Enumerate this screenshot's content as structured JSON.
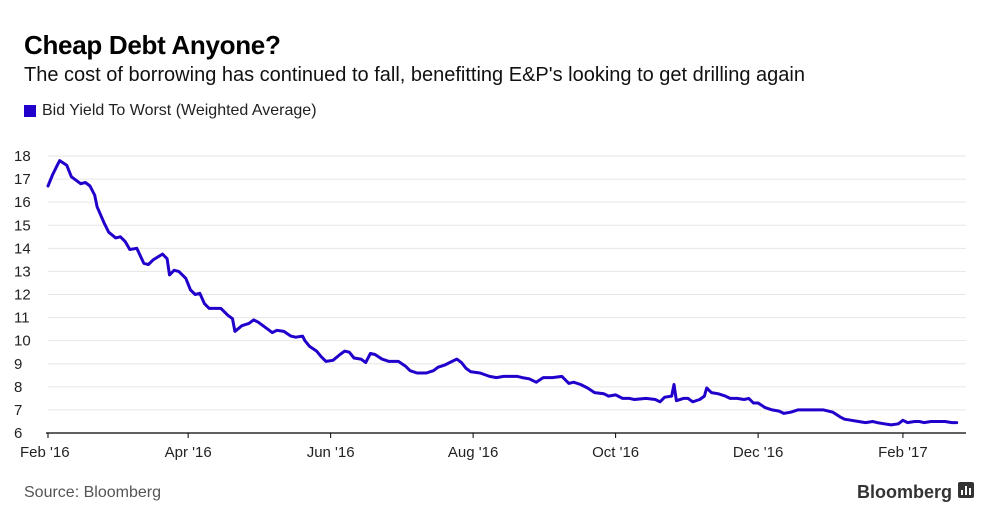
{
  "header": {
    "title": "Cheap Debt Anyone?",
    "subtitle": "The cost of borrowing has continued to fall, benefitting E&P's looking to get drilling again"
  },
  "legend": {
    "label": "Bid Yield To Worst (Weighted Average)"
  },
  "footer": {
    "source": "Source: Bloomberg",
    "brand": "Bloomberg"
  },
  "icons": {
    "brand_icon": "bar-chart-icon"
  },
  "colors": {
    "series": "#2200cc",
    "grid": "#e6e6e6",
    "axis": "#000000"
  },
  "chart_data": {
    "type": "line",
    "title": "Cheap Debt Anyone?",
    "subtitle": "The cost of borrowing has continued to fall, benefitting E&P's looking to get drilling again",
    "xlabel": "",
    "ylabel": "",
    "ylim": [
      6,
      18
    ],
    "yticks": [
      6,
      7,
      8,
      9,
      10,
      11,
      12,
      13,
      14,
      15,
      16,
      17,
      18
    ],
    "xlim": [
      "2016-02-01",
      "2017-02-28"
    ],
    "xticks": [
      {
        "date": "2016-02-01",
        "label": "Feb '16"
      },
      {
        "date": "2016-04-01",
        "label": "Apr '16"
      },
      {
        "date": "2016-06-01",
        "label": "Jun '16"
      },
      {
        "date": "2016-08-01",
        "label": "Aug '16"
      },
      {
        "date": "2016-10-01",
        "label": "Oct '16"
      },
      {
        "date": "2016-12-01",
        "label": "Dec '16"
      },
      {
        "date": "2017-02-01",
        "label": "Feb '17"
      }
    ],
    "grid": true,
    "legend_position": "top-left",
    "series": [
      {
        "name": "Bid Yield To Worst (Weighted Average)",
        "points": [
          [
            "2016-02-01",
            16.7
          ],
          [
            "2016-02-03",
            17.2
          ],
          [
            "2016-02-05",
            17.6
          ],
          [
            "2016-02-06",
            17.8
          ],
          [
            "2016-02-09",
            17.6
          ],
          [
            "2016-02-11",
            17.1
          ],
          [
            "2016-02-15",
            16.8
          ],
          [
            "2016-02-17",
            16.85
          ],
          [
            "2016-02-19",
            16.7
          ],
          [
            "2016-02-21",
            16.3
          ],
          [
            "2016-02-22",
            15.8
          ],
          [
            "2016-02-25",
            15.1
          ],
          [
            "2016-02-27",
            14.7
          ],
          [
            "2016-03-01",
            14.45
          ],
          [
            "2016-03-03",
            14.5
          ],
          [
            "2016-03-05",
            14.3
          ],
          [
            "2016-03-07",
            13.95
          ],
          [
            "2016-03-10",
            14.0
          ],
          [
            "2016-03-13",
            13.35
          ],
          [
            "2016-03-15",
            13.3
          ],
          [
            "2016-03-17",
            13.5
          ],
          [
            "2016-03-21",
            13.75
          ],
          [
            "2016-03-23",
            13.55
          ],
          [
            "2016-03-24",
            12.85
          ],
          [
            "2016-03-26",
            13.05
          ],
          [
            "2016-03-28",
            13.0
          ],
          [
            "2016-03-31",
            12.7
          ],
          [
            "2016-04-02",
            12.2
          ],
          [
            "2016-04-04",
            12.0
          ],
          [
            "2016-04-06",
            12.05
          ],
          [
            "2016-04-08",
            11.6
          ],
          [
            "2016-04-10",
            11.4
          ],
          [
            "2016-04-15",
            11.4
          ],
          [
            "2016-04-18",
            11.1
          ],
          [
            "2016-04-20",
            10.95
          ],
          [
            "2016-04-21",
            10.4
          ],
          [
            "2016-04-24",
            10.65
          ],
          [
            "2016-04-27",
            10.75
          ],
          [
            "2016-04-29",
            10.9
          ],
          [
            "2016-05-01",
            10.8
          ],
          [
            "2016-05-05",
            10.5
          ],
          [
            "2016-05-07",
            10.35
          ],
          [
            "2016-05-09",
            10.45
          ],
          [
            "2016-05-12",
            10.4
          ],
          [
            "2016-05-15",
            10.2
          ],
          [
            "2016-05-17",
            10.15
          ],
          [
            "2016-05-20",
            10.2
          ],
          [
            "2016-05-21",
            10.0
          ],
          [
            "2016-05-23",
            9.75
          ],
          [
            "2016-05-26",
            9.55
          ],
          [
            "2016-05-28",
            9.3
          ],
          [
            "2016-05-30",
            9.1
          ],
          [
            "2016-06-02",
            9.15
          ],
          [
            "2016-06-05",
            9.4
          ],
          [
            "2016-06-07",
            9.55
          ],
          [
            "2016-06-09",
            9.5
          ],
          [
            "2016-06-11",
            9.25
          ],
          [
            "2016-06-14",
            9.2
          ],
          [
            "2016-06-16",
            9.05
          ],
          [
            "2016-06-18",
            9.45
          ],
          [
            "2016-06-20",
            9.4
          ],
          [
            "2016-06-23",
            9.2
          ],
          [
            "2016-06-26",
            9.1
          ],
          [
            "2016-06-30",
            9.1
          ],
          [
            "2016-07-03",
            8.9
          ],
          [
            "2016-07-05",
            8.7
          ],
          [
            "2016-07-08",
            8.6
          ],
          [
            "2016-07-12",
            8.6
          ],
          [
            "2016-07-15",
            8.7
          ],
          [
            "2016-07-17",
            8.85
          ],
          [
            "2016-07-20",
            8.95
          ],
          [
            "2016-07-23",
            9.1
          ],
          [
            "2016-07-25",
            9.2
          ],
          [
            "2016-07-27",
            9.05
          ],
          [
            "2016-07-29",
            8.8
          ],
          [
            "2016-07-31",
            8.65
          ],
          [
            "2016-08-04",
            8.6
          ],
          [
            "2016-08-08",
            8.45
          ],
          [
            "2016-08-11",
            8.4
          ],
          [
            "2016-08-14",
            8.45
          ],
          [
            "2016-08-18",
            8.45
          ],
          [
            "2016-08-20",
            8.45
          ],
          [
            "2016-08-22",
            8.4
          ],
          [
            "2016-08-25",
            8.35
          ],
          [
            "2016-08-28",
            8.2
          ],
          [
            "2016-08-31",
            8.4
          ],
          [
            "2016-09-04",
            8.4
          ],
          [
            "2016-09-08",
            8.45
          ],
          [
            "2016-09-11",
            8.15
          ],
          [
            "2016-09-13",
            8.2
          ],
          [
            "2016-09-16",
            8.1
          ],
          [
            "2016-09-19",
            7.95
          ],
          [
            "2016-09-22",
            7.75
          ],
          [
            "2016-09-26",
            7.7
          ],
          [
            "2016-09-28",
            7.6
          ],
          [
            "2016-10-01",
            7.65
          ],
          [
            "2016-10-04",
            7.5
          ],
          [
            "2016-10-07",
            7.5
          ],
          [
            "2016-10-09",
            7.45
          ],
          [
            "2016-10-14",
            7.5
          ],
          [
            "2016-10-18",
            7.45
          ],
          [
            "2016-10-20",
            7.35
          ],
          [
            "2016-10-22",
            7.55
          ],
          [
            "2016-10-25",
            7.6
          ],
          [
            "2016-10-26",
            8.1
          ],
          [
            "2016-10-27",
            7.4
          ],
          [
            "2016-10-30",
            7.5
          ],
          [
            "2016-11-01",
            7.5
          ],
          [
            "2016-11-03",
            7.35
          ],
          [
            "2016-11-06",
            7.45
          ],
          [
            "2016-11-08",
            7.6
          ],
          [
            "2016-11-09",
            7.95
          ],
          [
            "2016-11-11",
            7.75
          ],
          [
            "2016-11-14",
            7.7
          ],
          [
            "2016-11-17",
            7.6
          ],
          [
            "2016-11-19",
            7.5
          ],
          [
            "2016-11-22",
            7.5
          ],
          [
            "2016-11-25",
            7.45
          ],
          [
            "2016-11-27",
            7.5
          ],
          [
            "2016-11-29",
            7.3
          ],
          [
            "2016-12-01",
            7.3
          ],
          [
            "2016-12-04",
            7.1
          ],
          [
            "2016-12-07",
            7.0
          ],
          [
            "2016-12-10",
            6.95
          ],
          [
            "2016-12-12",
            6.85
          ],
          [
            "2016-12-15",
            6.9
          ],
          [
            "2016-12-18",
            7.0
          ],
          [
            "2016-12-22",
            7.0
          ],
          [
            "2016-12-29",
            7.0
          ],
          [
            "2017-01-02",
            6.9
          ],
          [
            "2017-01-05",
            6.7
          ],
          [
            "2017-01-07",
            6.6
          ],
          [
            "2017-01-10",
            6.55
          ],
          [
            "2017-01-13",
            6.5
          ],
          [
            "2017-01-16",
            6.45
          ],
          [
            "2017-01-19",
            6.5
          ],
          [
            "2017-01-21",
            6.45
          ],
          [
            "2017-01-24",
            6.4
          ],
          [
            "2017-01-27",
            6.35
          ],
          [
            "2017-01-30",
            6.4
          ],
          [
            "2017-02-01",
            6.55
          ],
          [
            "2017-02-03",
            6.45
          ],
          [
            "2017-02-06",
            6.5
          ],
          [
            "2017-02-08",
            6.5
          ],
          [
            "2017-02-10",
            6.45
          ],
          [
            "2017-02-13",
            6.5
          ],
          [
            "2017-02-16",
            6.5
          ],
          [
            "2017-02-19",
            6.5
          ],
          [
            "2017-02-22",
            6.45
          ],
          [
            "2017-02-24",
            6.45
          ]
        ]
      }
    ]
  }
}
